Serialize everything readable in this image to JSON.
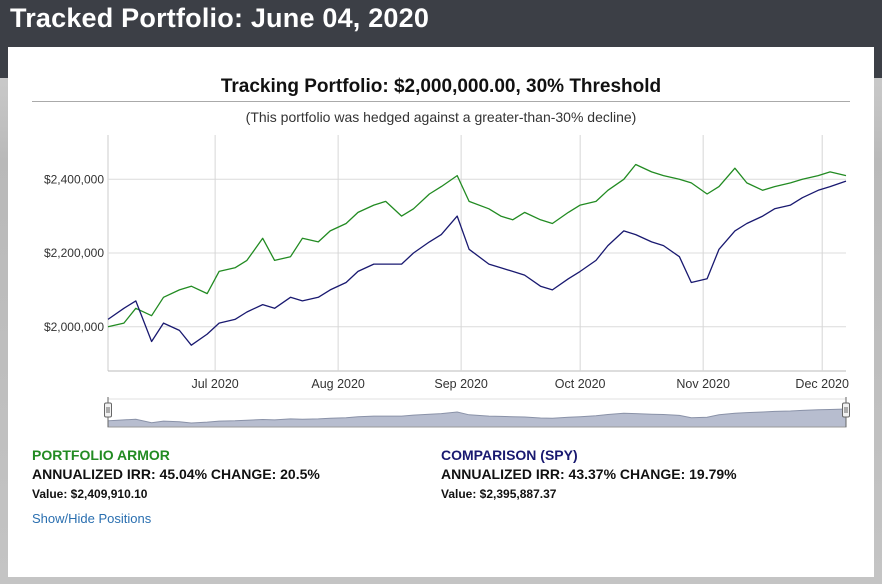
{
  "header": {
    "title": "Tracked Portfolio: June 04, 2020"
  },
  "chart_title": "Tracking Portfolio: $2,000,000.00, 30% Threshold",
  "chart_subtitle": "(This portfolio was hedged against a greater-than-30% decline)",
  "colors": {
    "armor": "#228b22",
    "spy": "#191970",
    "navigator_fill": "#b7bdcf",
    "navigator_line": "#8a92a8"
  },
  "chart_data": {
    "type": "line",
    "x_ticks": [
      "Jul 2020",
      "Aug 2020",
      "Sep 2020",
      "Oct 2020",
      "Nov 2020",
      "Dec 2020"
    ],
    "x_tick_dates": [
      "2020-07-01",
      "2020-08-01",
      "2020-09-01",
      "2020-10-01",
      "2020-11-01",
      "2020-12-01"
    ],
    "x_range": [
      "2020-06-04",
      "2020-12-07"
    ],
    "y_ticks": [
      "$2,000,000",
      "$2,200,000",
      "$2,400,000"
    ],
    "y_tick_values": [
      2000000,
      2200000,
      2400000
    ],
    "ylim": [
      1880000,
      2520000
    ],
    "grid": true,
    "x": [
      "2020-06-04",
      "2020-06-08",
      "2020-06-11",
      "2020-06-15",
      "2020-06-18",
      "2020-06-22",
      "2020-06-25",
      "2020-06-29",
      "2020-07-02",
      "2020-07-06",
      "2020-07-09",
      "2020-07-13",
      "2020-07-16",
      "2020-07-20",
      "2020-07-23",
      "2020-07-27",
      "2020-07-30",
      "2020-08-03",
      "2020-08-06",
      "2020-08-10",
      "2020-08-13",
      "2020-08-17",
      "2020-08-20",
      "2020-08-24",
      "2020-08-27",
      "2020-08-31",
      "2020-09-03",
      "2020-09-08",
      "2020-09-11",
      "2020-09-14",
      "2020-09-17",
      "2020-09-21",
      "2020-09-24",
      "2020-09-28",
      "2020-10-01",
      "2020-10-05",
      "2020-10-08",
      "2020-10-12",
      "2020-10-15",
      "2020-10-19",
      "2020-10-22",
      "2020-10-26",
      "2020-10-29",
      "2020-11-02",
      "2020-11-05",
      "2020-11-09",
      "2020-11-12",
      "2020-11-16",
      "2020-11-19",
      "2020-11-23",
      "2020-11-26",
      "2020-11-30",
      "2020-12-03",
      "2020-12-07"
    ],
    "series": [
      {
        "name": "PORTFOLIO ARMOR",
        "values": [
          2000000,
          2010000,
          2050000,
          2030000,
          2080000,
          2100000,
          2110000,
          2090000,
          2150000,
          2160000,
          2180000,
          2240000,
          2180000,
          2190000,
          2240000,
          2230000,
          2260000,
          2280000,
          2310000,
          2330000,
          2340000,
          2300000,
          2320000,
          2360000,
          2380000,
          2410000,
          2340000,
          2320000,
          2300000,
          2290000,
          2310000,
          2290000,
          2280000,
          2310000,
          2330000,
          2340000,
          2370000,
          2400000,
          2440000,
          2420000,
          2410000,
          2400000,
          2390000,
          2360000,
          2380000,
          2430000,
          2390000,
          2370000,
          2380000,
          2390000,
          2400000,
          2410000,
          2420000,
          2410000
        ]
      },
      {
        "name": "COMPARISON (SPY)",
        "values": [
          2020000,
          2050000,
          2070000,
          1960000,
          2010000,
          1990000,
          1950000,
          1980000,
          2010000,
          2020000,
          2040000,
          2060000,
          2050000,
          2080000,
          2070000,
          2080000,
          2100000,
          2120000,
          2150000,
          2170000,
          2170000,
          2170000,
          2200000,
          2230000,
          2250000,
          2300000,
          2210000,
          2170000,
          2160000,
          2150000,
          2140000,
          2110000,
          2100000,
          2130000,
          2150000,
          2180000,
          2220000,
          2260000,
          2250000,
          2230000,
          2220000,
          2190000,
          2120000,
          2130000,
          2210000,
          2260000,
          2280000,
          2300000,
          2320000,
          2330000,
          2350000,
          2370000,
          2380000,
          2395000
        ]
      }
    ]
  },
  "legend": {
    "armor": {
      "name": "PORTFOLIO ARMOR",
      "irr": "ANNUALIZED IRR: 45.04% CHANGE: 20.5%",
      "value": "Value: $2,409,910.10"
    },
    "spy": {
      "name": "COMPARISON (SPY)",
      "irr": "ANNUALIZED IRR: 43.37% CHANGE: 19.79%",
      "value": "Value: $2,395,887.37"
    }
  },
  "links": {
    "show_hide": "Show/Hide Positions"
  }
}
